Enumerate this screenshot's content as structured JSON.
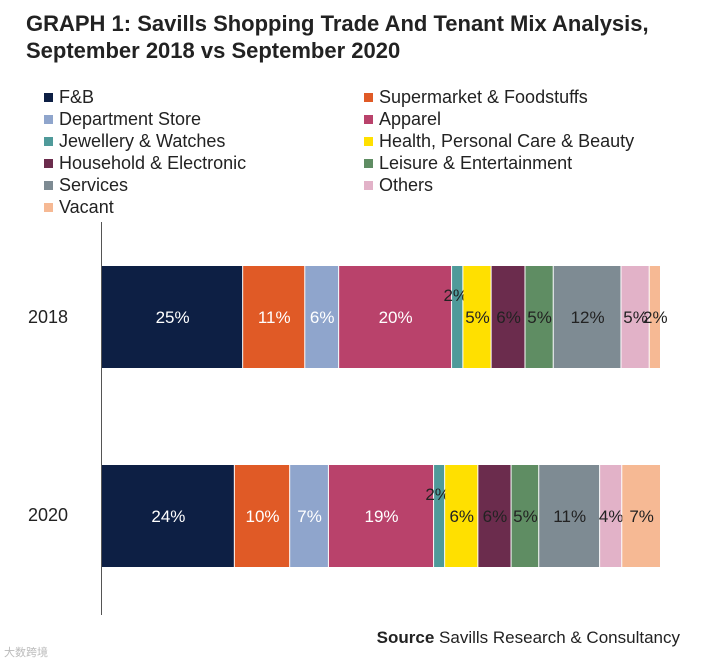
{
  "title": "GRAPH 1: Savills Shopping Trade And Tenant Mix Analysis, September 2018 vs September 2020",
  "source": {
    "label": "Source",
    "text": "Savills Research & Consultancy"
  },
  "watermark": "大数跨境",
  "chart_data": {
    "type": "bar",
    "orientation": "horizontal-stacked-100",
    "categories": [
      "2018",
      "2020"
    ],
    "series": [
      {
        "name": "F&B",
        "color": "#0d1f44",
        "values": [
          25,
          24
        ],
        "labels": [
          "25%",
          "24%"
        ],
        "label_color": "#ffffff"
      },
      {
        "name": "Supermarket & Foodstuffs",
        "color": "#e05a26",
        "values": [
          11,
          10
        ],
        "labels": [
          "11%",
          "10%"
        ],
        "label_color": "#ffffff"
      },
      {
        "name": "Department Store",
        "color": "#8fa5cc",
        "values": [
          6,
          7
        ],
        "labels": [
          "6%",
          "7%"
        ],
        "label_color": "#ffffff"
      },
      {
        "name": "Apparel",
        "color": "#b9426b",
        "values": [
          20,
          19
        ],
        "labels": [
          "20%",
          "19%"
        ],
        "label_color": "#ffffff"
      },
      {
        "name": "Jewellery & Watches",
        "color": "#4f9a9a",
        "values": [
          2,
          2
        ],
        "labels": [
          "2%",
          "2%"
        ],
        "label_color": "#222222"
      },
      {
        "name": "Health, Personal Care & Beauty",
        "color": "#ffe000",
        "values": [
          5,
          6
        ],
        "labels": [
          "5%",
          "6%"
        ],
        "label_color": "#222222"
      },
      {
        "name": "Household & Electronic",
        "color": "#6b2c4d",
        "values": [
          6,
          6
        ],
        "labels": [
          "6%",
          "6%"
        ],
        "label_color": "#222222"
      },
      {
        "name": "Leisure & Entertainment",
        "color": "#5f8d63",
        "values": [
          5,
          5
        ],
        "labels": [
          "5%",
          "5%"
        ],
        "label_color": "#222222"
      },
      {
        "name": "Services",
        "color": "#7e8b93",
        "values": [
          12,
          11
        ],
        "labels": [
          "12%",
          "11%"
        ],
        "label_color": "#222222"
      },
      {
        "name": "Others",
        "color": "#e2b2c8",
        "values": [
          5,
          4
        ],
        "labels": [
          "5%",
          "4%"
        ],
        "label_color": "#222222"
      },
      {
        "name": "Vacant",
        "color": "#f6b994",
        "values": [
          2,
          7
        ],
        "labels": [
          "2%",
          "7%"
        ],
        "label_color": "#222222"
      }
    ],
    "legend_position": "top",
    "grid": false
  }
}
